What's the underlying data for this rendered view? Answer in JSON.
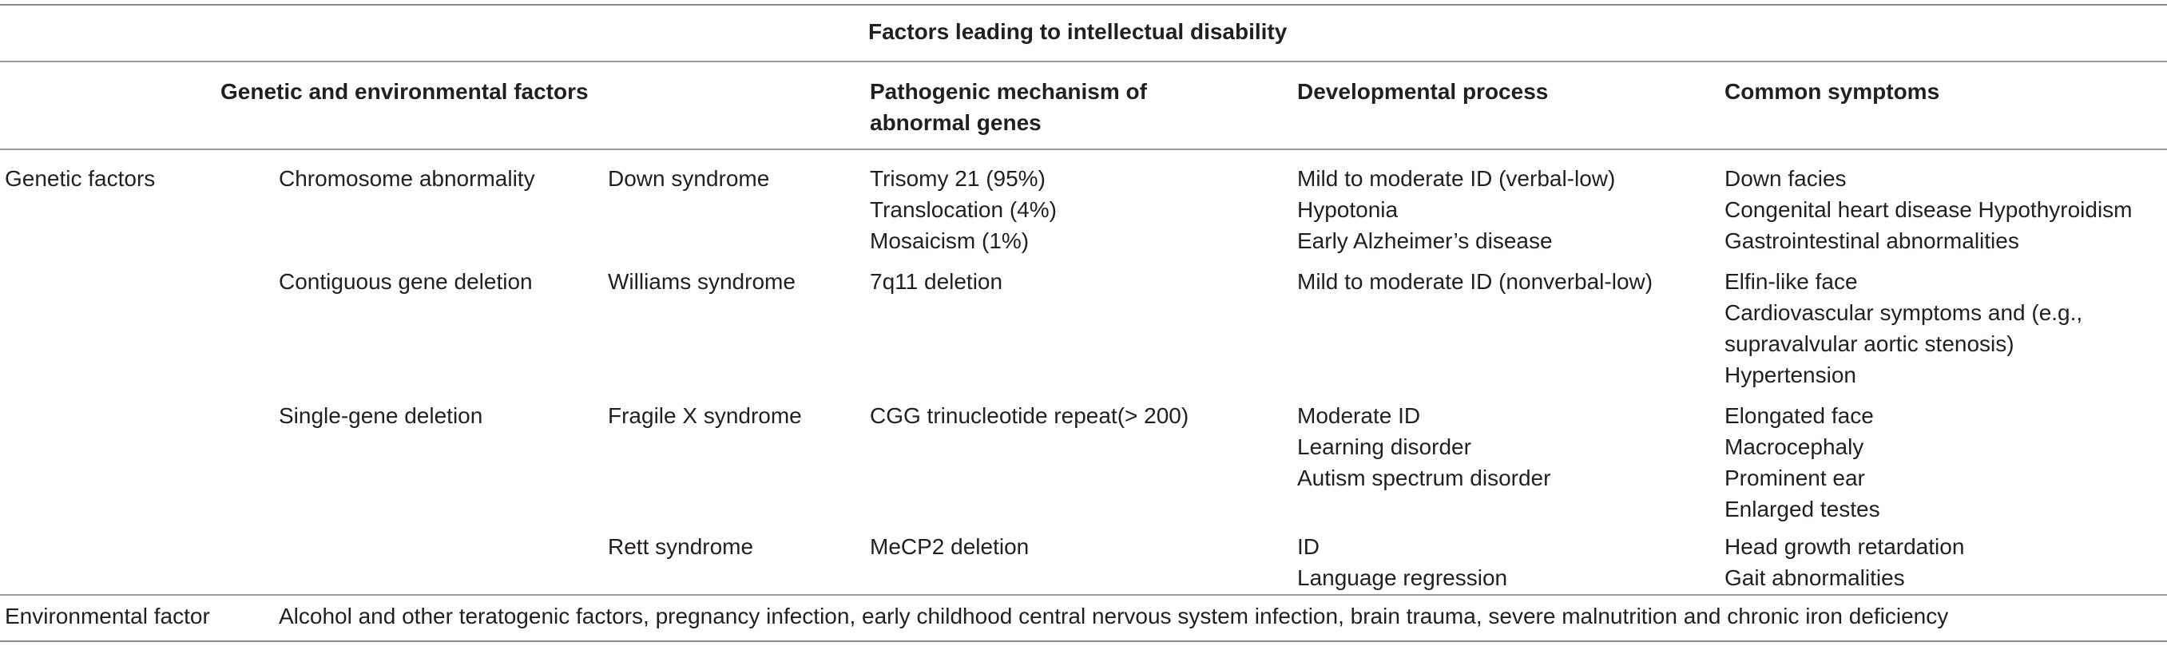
{
  "table": {
    "title": "Factors leading to intellectual disability",
    "headers": {
      "factors": "Genetic and environmental factors",
      "mechanism_line1": "Pathogenic mechanism of",
      "mechanism_line2": "abnormal genes",
      "process": "Developmental process",
      "symptoms": "Common symptoms"
    },
    "genetic_label": "Genetic factors",
    "rows": [
      {
        "category": "Chromosome abnormality",
        "disease": "Down syndrome",
        "mechanism": [
          "Trisomy 21 (95%)",
          "Translocation (4%)",
          "Mosaicism (1%)"
        ],
        "process": [
          "Mild to moderate ID (verbal-low)",
          "Hypotonia",
          "Early Alzheimer’s disease"
        ],
        "symptoms": [
          "Down facies",
          "Congenital heart disease Hypothyroidism",
          "Gastrointestinal abnormalities"
        ]
      },
      {
        "category": "Contiguous gene deletion",
        "disease": "Williams syndrome",
        "mechanism": [
          "7q11 deletion"
        ],
        "process": [
          "Mild to moderate ID (nonverbal-low)"
        ],
        "symptoms": [
          "Elfin-like face",
          "Cardiovascular symptoms and (e.g.,",
          "supravalvular aortic stenosis)",
          "Hypertension"
        ]
      },
      {
        "category": "Single-gene deletion",
        "disease": "Fragile X syndrome",
        "mechanism": [
          "CGG trinucleotide repeat(> 200)"
        ],
        "process": [
          "Moderate ID",
          "Learning disorder",
          "Autism spectrum disorder"
        ],
        "symptoms": [
          "Elongated face",
          "Macrocephaly",
          "Prominent ear",
          "Enlarged testes"
        ]
      },
      {
        "category": "",
        "disease": "Rett syndrome",
        "mechanism": [
          "MeCP2 deletion"
        ],
        "process": [
          "ID",
          "Language regression"
        ],
        "symptoms": [
          "Head growth retardation",
          "Gait abnormalities"
        ]
      }
    ],
    "environmental_label": "Environmental factor",
    "environmental_text": "Alcohol and other teratogenic factors, pregnancy infection, early childhood central nervous system infection, brain trauma, severe malnutrition and chronic iron deficiency"
  }
}
